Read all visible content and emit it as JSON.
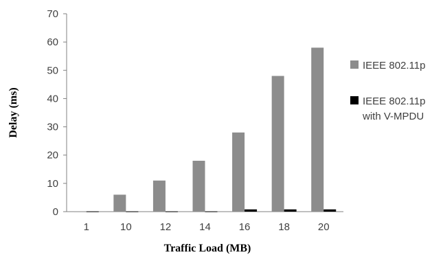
{
  "chart_data": {
    "type": "bar",
    "title": "",
    "xlabel": "Traffic Load (MB)",
    "ylabel": "Delay (ms)",
    "categories": [
      "1",
      "10",
      "12",
      "14",
      "16",
      "18",
      "20"
    ],
    "ylim": [
      0,
      70
    ],
    "yticks": [
      "0",
      "10",
      "20",
      "30",
      "40",
      "50",
      "60",
      "70"
    ],
    "grid": false,
    "legend_position": "right",
    "series": [
      {
        "name": "IEEE 802.11p",
        "values": [
          0.1,
          6,
          11,
          18,
          28,
          48,
          58
        ],
        "color": "#8c8c8c"
      },
      {
        "name": "IEEE 802.11p with V-MPDU",
        "name_lines": [
          "IEEE 802.11p",
          "with V-MPDU"
        ],
        "values": [
          0.1,
          0.1,
          0.1,
          0.1,
          0.8,
          0.8,
          0.8
        ],
        "color": "#000000"
      }
    ]
  }
}
